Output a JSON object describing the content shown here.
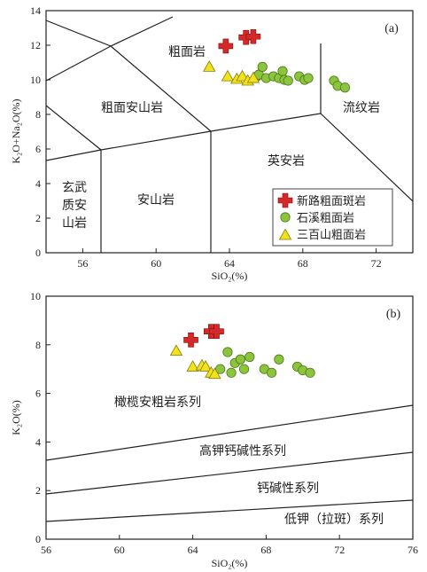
{
  "colors": {
    "xinlu": "#d62828",
    "shixi": "#8cc43e",
    "sanbai": "#f0e21c",
    "line": "#222222"
  },
  "chart_data": [
    {
      "type": "scatter",
      "panel_label": "(a)",
      "xlabel": "SiO₂(%)",
      "ylabel": "K₂O+Na₂O(%)",
      "xlim": [
        54,
        74
      ],
      "ylim": [
        0,
        14
      ],
      "xticks": [
        "56",
        "60",
        "64",
        "68",
        "72"
      ],
      "yticks": [
        "0",
        "2",
        "4",
        "6",
        "8",
        "10",
        "12",
        "14"
      ],
      "fields": [
        "粗面岩",
        "粗面安山岩",
        "流纹岩",
        "英安岩",
        "玄武",
        "质安",
        "山岩",
        "安山岩"
      ],
      "series": [
        {
          "name": "新路粗面斑岩",
          "marker": "cross",
          "x": [
            63.8,
            64.9,
            65.3
          ],
          "y": [
            11.95,
            12.45,
            12.5
          ]
        },
        {
          "name": "石溪粗面岩",
          "marker": "circle",
          "x": [
            65.5,
            65.6,
            65.8,
            66.0,
            66.4,
            66.7,
            66.9,
            67.0,
            67.2,
            67.8,
            68.1,
            68.3,
            69.7,
            69.9,
            70.3
          ],
          "y": [
            10.2,
            10.3,
            10.75,
            10.1,
            10.2,
            10.1,
            10.5,
            10.0,
            9.95,
            10.2,
            10.0,
            10.1,
            9.95,
            9.65,
            9.55
          ]
        },
        {
          "name": "三百山粗面岩",
          "marker": "triangle",
          "x": [
            62.9,
            63.9,
            64.4,
            64.7,
            65.0,
            65.3
          ],
          "y": [
            10.75,
            10.2,
            10.05,
            10.2,
            9.95,
            10.1
          ]
        }
      ]
    },
    {
      "type": "scatter",
      "panel_label": "(b)",
      "xlabel": "SiO₂(%)",
      "ylabel": "K₂O(%)",
      "xlim": [
        56,
        76
      ],
      "ylim": [
        0,
        10
      ],
      "xticks": [
        "56",
        "60",
        "64",
        "68",
        "72",
        "76"
      ],
      "yticks": [
        "0",
        "2",
        "4",
        "6",
        "8",
        "10"
      ],
      "fields": [
        "橄榄安粗岩系列",
        "高钾钙碱性系列",
        "钙碱性系列",
        "低钾（拉斑）系列"
      ],
      "series": [
        {
          "name": "新路粗面斑岩",
          "marker": "cross",
          "x": [
            63.9,
            65.0,
            65.3
          ],
          "y": [
            8.2,
            8.55,
            8.55
          ]
        },
        {
          "name": "石溪粗面岩",
          "marker": "circle",
          "x": [
            65.5,
            65.9,
            66.1,
            66.3,
            66.6,
            66.8,
            67.1,
            67.9,
            68.3,
            68.7,
            69.7,
            70.0,
            70.4
          ],
          "y": [
            7.0,
            7.7,
            6.85,
            7.25,
            7.4,
            7.0,
            7.5,
            7.0,
            6.85,
            7.4,
            7.1,
            6.95,
            6.85
          ]
        },
        {
          "name": "三百山粗面岩",
          "marker": "triangle",
          "x": [
            63.1,
            64.0,
            64.5,
            64.7,
            65.0,
            65.2
          ],
          "y": [
            7.75,
            7.1,
            7.15,
            7.1,
            6.85,
            6.8
          ]
        }
      ]
    }
  ]
}
